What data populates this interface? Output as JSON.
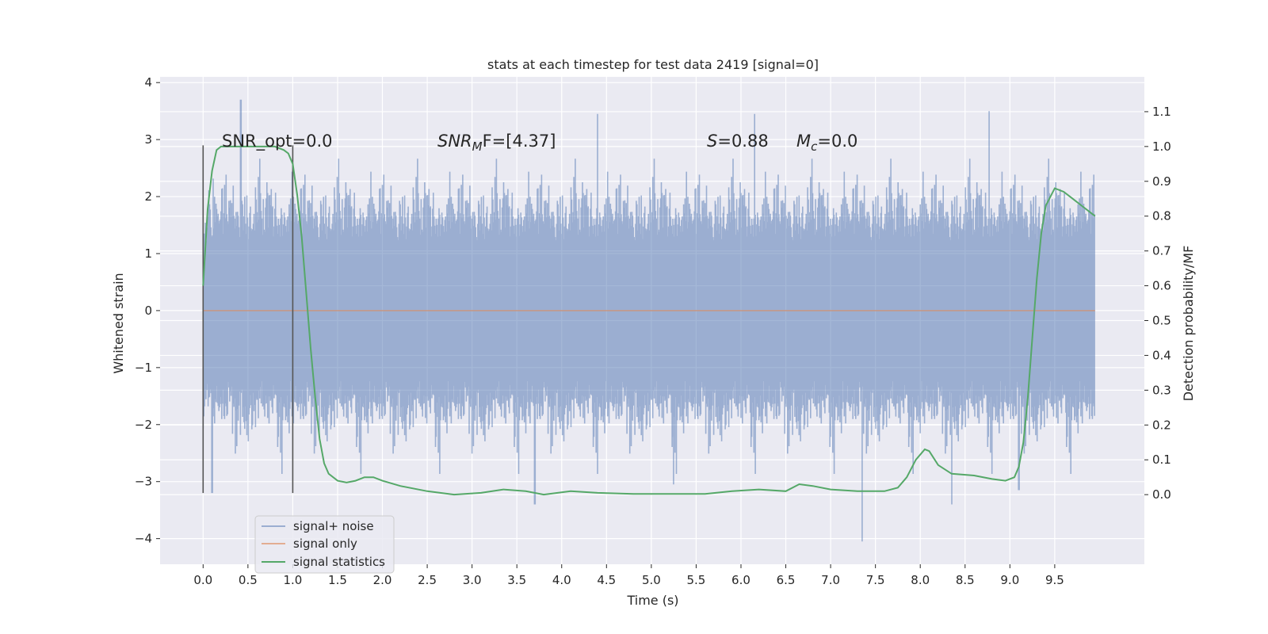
{
  "chart_data": {
    "type": "line",
    "title": "stats at each timestep for test data 2419 [signal=0]",
    "xlabel": "Time (s)",
    "ylabel": "Whitened strain",
    "ylabel_right": "Detection probability/MF",
    "xlim": [
      -0.48,
      10.5
    ],
    "ylim": [
      -4.45,
      4.1
    ],
    "ylim_right": [
      -0.2,
      1.2
    ],
    "x_ticks": [
      "0.0",
      "0.5",
      "1.0",
      "1.5",
      "2.0",
      "2.5",
      "3.0",
      "3.5",
      "4.0",
      "4.5",
      "5.0",
      "5.5",
      "6.0",
      "6.5",
      "7.0",
      "7.5",
      "8.0",
      "8.5",
      "9.0",
      "9.5"
    ],
    "y_ticks": [
      "4",
      "3",
      "2",
      "1",
      "0",
      "−1",
      "−2",
      "−3",
      "−4"
    ],
    "y_ticks_right": [
      "1.1",
      "1.0",
      "0.9",
      "0.8",
      "0.7",
      "0.6",
      "0.5",
      "0.4",
      "0.3",
      "0.2",
      "0.1",
      "0.0"
    ],
    "grid": true,
    "legend_position": "lower-left",
    "colors": {
      "noise": "#4c72b0",
      "signal": "#dd8452",
      "stats": "#55a868",
      "marker": "#555555",
      "plot_bg": "#eaeaf2",
      "grid": "#ffffff"
    },
    "series": [
      {
        "name": "signal+ noise",
        "color": "#4c72b0",
        "description_range": [
          0.0,
          9.95
        ],
        "typical_envelope": [
          -1.7,
          1.7
        ],
        "peaks": [
          {
            "x": 0.42,
            "y": 3.7
          },
          {
            "x": 4.4,
            "y": 3.45
          },
          {
            "x": 6.15,
            "y": 3.45
          },
          {
            "x": 8.77,
            "y": 3.5
          },
          {
            "x": 3.7,
            "y": -3.4
          },
          {
            "x": 7.35,
            "y": -4.05
          },
          {
            "x": 8.35,
            "y": -3.4
          },
          {
            "x": 0.1,
            "y": -3.2
          },
          {
            "x": 5.25,
            "y": -3.05
          },
          {
            "x": 9.1,
            "y": -3.15
          }
        ]
      },
      {
        "name": "signal only",
        "color": "#dd8452",
        "x": [
          0.0,
          9.95
        ],
        "y": [
          0.0,
          0.0
        ]
      },
      {
        "name": "signal statistics",
        "color": "#55a868",
        "axis": "right",
        "x": [
          0.0,
          0.05,
          0.1,
          0.15,
          0.2,
          0.3,
          0.4,
          0.5,
          0.6,
          0.7,
          0.8,
          0.9,
          0.95,
          1.0,
          1.05,
          1.1,
          1.15,
          1.2,
          1.25,
          1.3,
          1.35,
          1.4,
          1.5,
          1.6,
          1.7,
          1.8,
          1.9,
          2.0,
          2.2,
          2.5,
          2.8,
          3.1,
          3.35,
          3.6,
          3.8,
          4.1,
          4.4,
          4.8,
          5.2,
          5.6,
          5.9,
          6.2,
          6.5,
          6.65,
          6.8,
          7.0,
          7.3,
          7.6,
          7.75,
          7.85,
          7.95,
          8.05,
          8.1,
          8.2,
          8.35,
          8.6,
          8.8,
          8.95,
          9.05,
          9.1,
          9.15,
          9.2,
          9.25,
          9.3,
          9.35,
          9.4,
          9.5,
          9.6,
          9.7,
          9.8,
          9.95
        ],
        "y": [
          0.6,
          0.82,
          0.93,
          0.99,
          1.0,
          1.0,
          1.0,
          1.0,
          1.0,
          1.0,
          1.0,
          0.99,
          0.98,
          0.95,
          0.86,
          0.74,
          0.58,
          0.42,
          0.28,
          0.16,
          0.09,
          0.06,
          0.04,
          0.035,
          0.04,
          0.05,
          0.05,
          0.04,
          0.025,
          0.01,
          0.0,
          0.005,
          0.015,
          0.01,
          0.0,
          0.01,
          0.005,
          0.002,
          0.002,
          0.002,
          0.01,
          0.015,
          0.01,
          0.03,
          0.025,
          0.015,
          0.01,
          0.01,
          0.02,
          0.05,
          0.1,
          0.13,
          0.125,
          0.085,
          0.06,
          0.055,
          0.045,
          0.04,
          0.05,
          0.08,
          0.15,
          0.28,
          0.45,
          0.62,
          0.75,
          0.83,
          0.88,
          0.87,
          0.85,
          0.83,
          0.8
        ]
      }
    ],
    "vertical_markers": [
      {
        "x": 0.0,
        "y_range": [
          -3.2,
          2.9
        ]
      },
      {
        "x": 1.0,
        "y_range": [
          -3.2,
          2.9
        ]
      }
    ],
    "annotations": [
      {
        "text": "SNR_opt=0.0",
        "x": 0.2,
        "y": 3.0
      },
      {
        "main": "SNR",
        "sub": "M",
        "rest": "F=[4.37]",
        "x": 2.6,
        "y": 3.0
      },
      {
        "main": "S",
        "sub": "",
        "rest": "=0.88",
        "x": 5.6,
        "y": 3.0
      },
      {
        "main": "M",
        "sub": "c",
        "rest": "=0.0",
        "x": 6.6,
        "y": 3.0
      }
    ]
  }
}
